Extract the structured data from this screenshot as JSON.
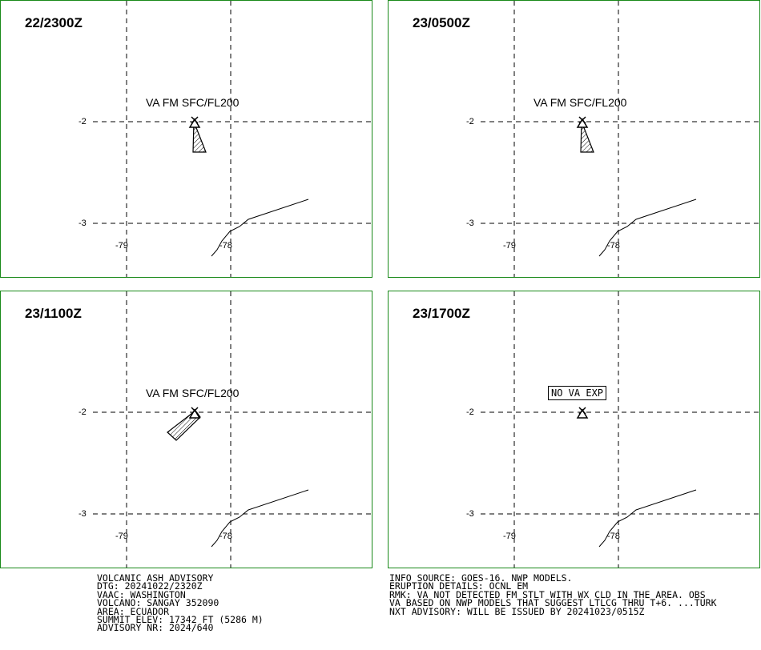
{
  "panels": [
    {
      "time": "22/2300Z",
      "label": "VA FM SFC/FL200",
      "plume": "south"
    },
    {
      "time": "23/0500Z",
      "label": "VA FM SFC/FL200",
      "plume": "south"
    },
    {
      "time": "23/1100Z",
      "label": "VA FM SFC/FL200",
      "plume": "southwest"
    },
    {
      "time": "23/1700Z",
      "label": "NO VA EXP",
      "plume": "none"
    }
  ],
  "axis": {
    "lat_labels": [
      "-2",
      "-3"
    ],
    "lon_labels": [
      "-79",
      "-78"
    ]
  },
  "advisory_left": [
    "VOLCANIC ASH ADVISORY",
    "DTG: 20241022/2320Z",
    "VAAC: WASHINGTON",
    "VOLCANO: SANGAY 352090",
    "AREA: ECUADOR",
    "SUMMIT ELEV: 17342 FT (5286 M)",
    "ADVISORY NR: 2024/640"
  ],
  "advisory_right": [
    "INFO SOURCE: GOES-16. NWP MODELS.",
    "ERUPTION DETAILS: OCNL EM",
    "RMK: VA NOT DETECTED FM STLT WITH WX CLD IN THE AREA. OBS",
    "VA BASED ON NWP MODELS THAT SUGGEST LTLCG THRU T+6. ...TURK",
    "NXT ADVISORY: WILL BE ISSUED BY 20241023/0515Z"
  ],
  "colors": {
    "panel_border": "#1a8a1a",
    "lines": "#000000"
  }
}
